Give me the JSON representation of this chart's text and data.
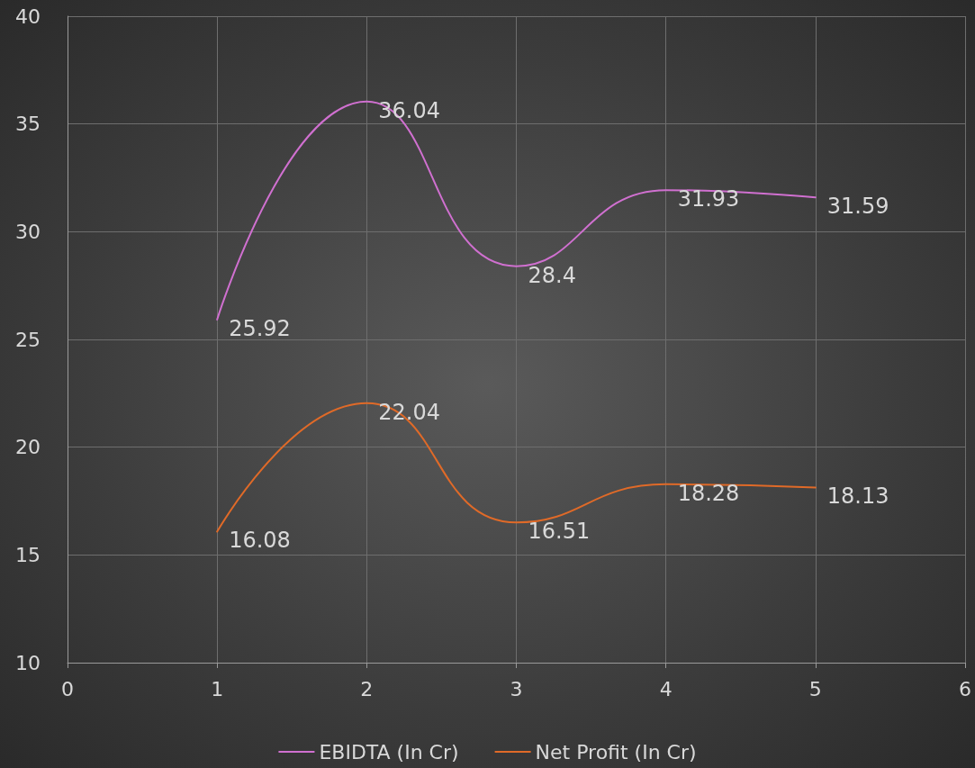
{
  "chart_data": {
    "type": "line",
    "x": [
      1,
      2,
      3,
      4,
      5
    ],
    "series": [
      {
        "name": "EBIDTA (In Cr)",
        "color": "#d070d0",
        "values": [
          25.92,
          36.04,
          28.4,
          31.93,
          31.59
        ]
      },
      {
        "name": "Net Profit (In Cr)",
        "color": "#e06a28",
        "values": [
          16.08,
          22.04,
          16.51,
          18.28,
          18.13
        ]
      }
    ],
    "xlim": [
      0,
      6
    ],
    "xticks": [
      0,
      1,
      2,
      3,
      4,
      5,
      6
    ],
    "ylim": [
      10,
      40
    ],
    "yticks": [
      10,
      15,
      20,
      25,
      30,
      35,
      40
    ],
    "grid": true,
    "legend": "bottom",
    "marker": "none",
    "line_style": "solid",
    "data_labels": true
  }
}
